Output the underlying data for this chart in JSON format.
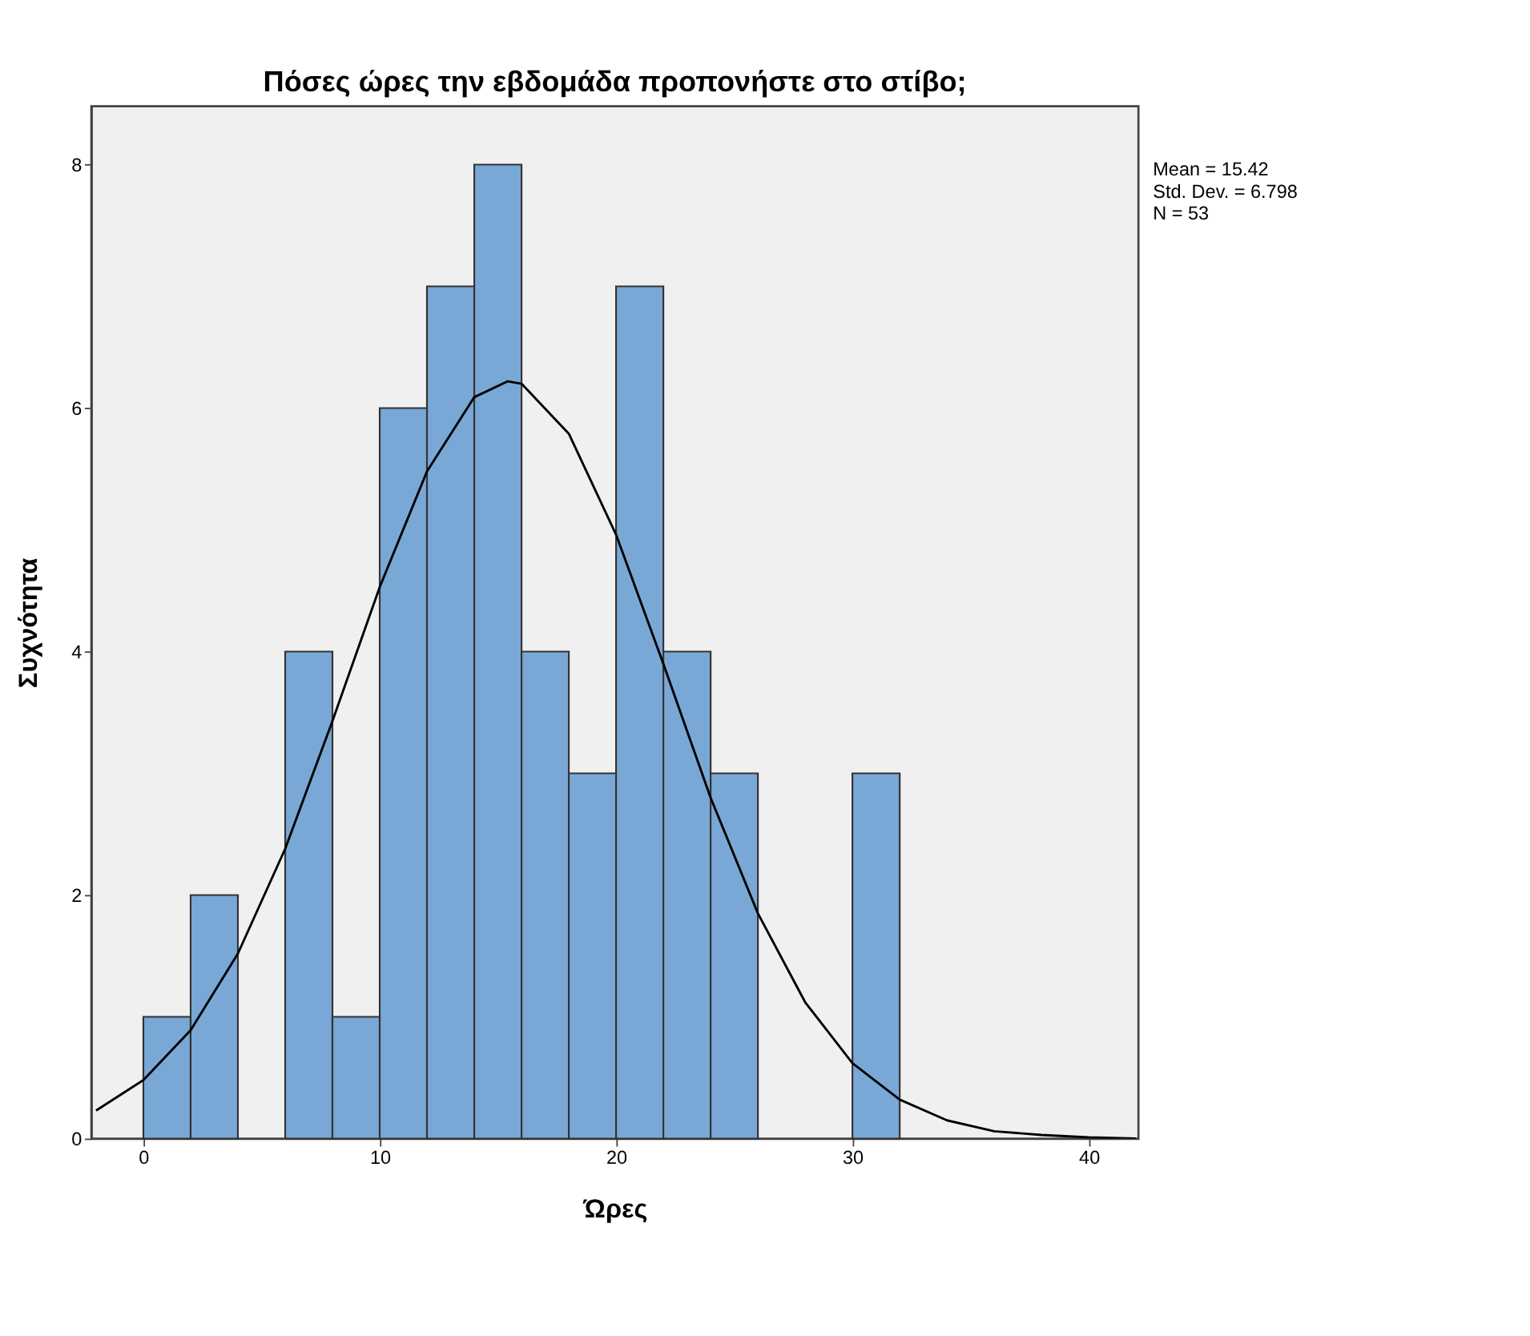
{
  "chart_data": {
    "type": "histogram",
    "title": "Πόσες ώρες την εβδομάδα προπονήστε στο στίβο;",
    "xlabel": "Ώρες",
    "ylabel": "Συχνότητα",
    "bins": [
      0,
      2,
      4,
      6,
      8,
      10,
      12,
      14,
      16,
      18,
      20,
      22,
      24,
      26,
      28,
      30,
      32
    ],
    "values": [
      1,
      2,
      0,
      4,
      1,
      6,
      7,
      8,
      4,
      3,
      7,
      4,
      3,
      0,
      0,
      3
    ],
    "color": "#79a8d6",
    "series": [
      {
        "type": "line",
        "color": "#000000",
        "x": [
          -2,
          0,
          2,
          4,
          6,
          8,
          10,
          12,
          14,
          15.42,
          16,
          18,
          20,
          22,
          24,
          26,
          28,
          30,
          32,
          34,
          36,
          38,
          40,
          42
        ],
        "values": [
          0.23,
          0.48,
          0.89,
          1.52,
          2.38,
          3.43,
          4.53,
          5.48,
          6.09,
          6.22,
          6.2,
          5.79,
          4.96,
          3.9,
          2.8,
          1.85,
          1.12,
          0.62,
          0.32,
          0.15,
          0.06,
          0.03,
          0.01,
          0.0
        ]
      }
    ],
    "annotations": [
      "Mean = 15.42",
      "Std. Dev. = 6.798",
      "N = 53"
    ],
    "xlim": [
      -2.2,
      42.1
    ],
    "ylim": [
      0,
      8.48
    ],
    "xticks": [
      0,
      10,
      20,
      30,
      40
    ],
    "yticks": [
      0,
      2,
      4,
      6,
      8
    ],
    "grid": false
  }
}
